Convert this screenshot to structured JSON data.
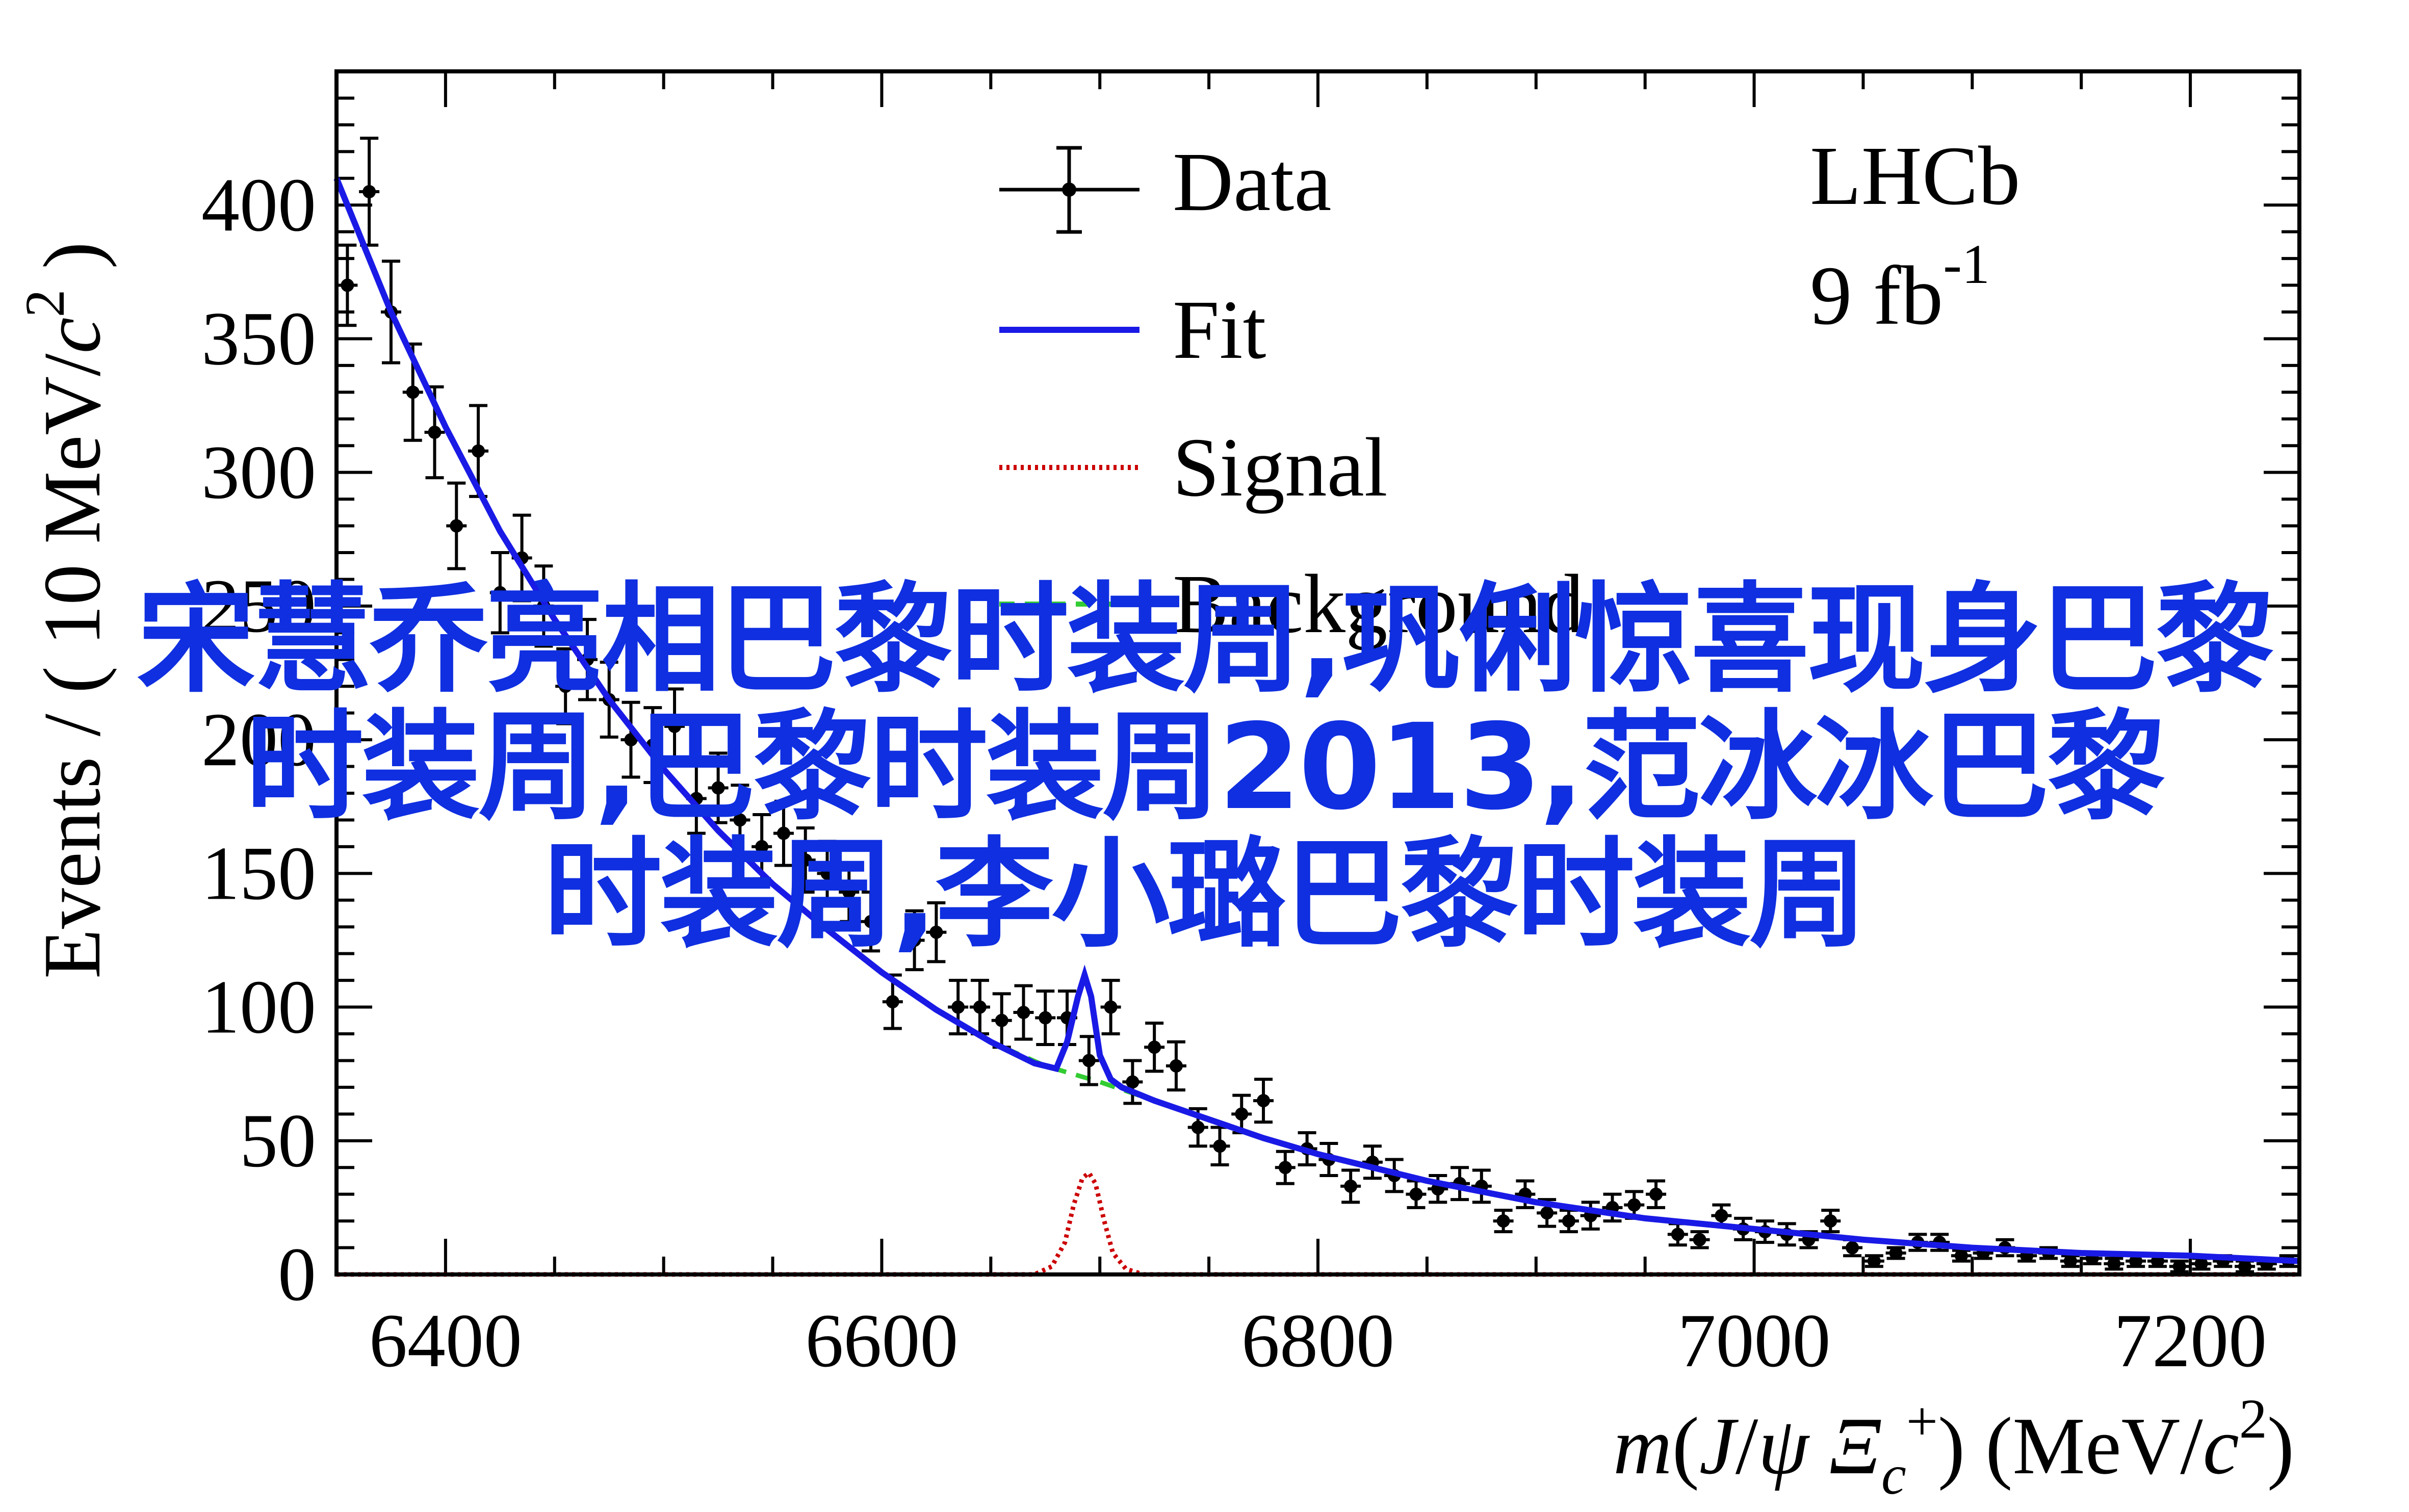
{
  "chart_data": {
    "type": "line",
    "experiment_label": "LHCb",
    "luminosity_label": "9 fb",
    "luminosity_exponent": "-1",
    "xlabel": "m(J/ψ Ξc+) (MeV/c2)",
    "ylabel": "Events / ( 10 MeV/c2 )",
    "xlim": [
      6350,
      7250
    ],
    "ylim": [
      0,
      450
    ],
    "x_ticks": [
      6400,
      6600,
      6800,
      7000,
      7200
    ],
    "y_ticks": [
      0,
      50,
      100,
      150,
      200,
      250,
      300,
      350,
      400
    ],
    "legend_position": "top-center",
    "legend": [
      {
        "label": "Data",
        "style": "points-with-errors",
        "color": "#000000"
      },
      {
        "label": "Fit",
        "style": "solid",
        "color": "#1a1ae6"
      },
      {
        "label": "Signal",
        "style": "dotted",
        "color": "#cc0000"
      },
      {
        "label": "Background",
        "style": "dashed",
        "color": "#33cc33"
      }
    ],
    "series": [
      {
        "name": "Data",
        "x": [
          6355,
          6365,
          6375,
          6385,
          6395,
          6405,
          6415,
          6425,
          6435,
          6445,
          6455,
          6465,
          6475,
          6485,
          6495,
          6505,
          6515,
          6525,
          6535,
          6545,
          6555,
          6565,
          6575,
          6585,
          6595,
          6605,
          6615,
          6625,
          6635,
          6645,
          6655,
          6665,
          6675,
          6685,
          6695,
          6705,
          6715,
          6725,
          6735,
          6745,
          6755,
          6765,
          6775,
          6785,
          6795,
          6805,
          6815,
          6825,
          6835,
          6845,
          6855,
          6865,
          6875,
          6885,
          6895,
          6905,
          6915,
          6925,
          6935,
          6945,
          6955,
          6965,
          6975,
          6985,
          6995,
          7005,
          7015,
          7025,
          7035,
          7045,
          7055,
          7065,
          7075,
          7085,
          7095,
          7105,
          7115,
          7125,
          7135,
          7145,
          7155,
          7165,
          7175,
          7185,
          7195,
          7205,
          7215,
          7225,
          7235,
          7245
        ],
        "y": [
          370,
          405,
          360,
          330,
          315,
          280,
          308,
          255,
          268,
          250,
          220,
          230,
          215,
          200,
          198,
          205,
          178,
          182,
          170,
          160,
          165,
          155,
          150,
          143,
          132,
          102,
          125,
          128,
          100,
          100,
          95,
          98,
          96,
          96,
          80,
          100,
          72,
          85,
          78,
          55,
          48,
          60,
          65,
          40,
          47,
          43,
          33,
          42,
          37,
          30,
          32,
          34,
          33,
          20,
          30,
          23,
          20,
          22,
          25,
          26,
          30,
          15,
          13,
          22,
          17,
          16,
          15,
          13,
          20,
          10,
          5,
          8,
          12,
          12,
          7,
          8,
          10,
          7,
          8,
          5,
          6,
          4,
          5,
          5,
          3,
          4,
          5,
          3,
          4,
          5
        ],
        "err": [
          15,
          20,
          19,
          18,
          17,
          16,
          17,
          15,
          16,
          15,
          14,
          15,
          14,
          14,
          14,
          14,
          13,
          13,
          13,
          12,
          12,
          12,
          12,
          11,
          11,
          10,
          11,
          11,
          10,
          10,
          10,
          10,
          10,
          10,
          9,
          10,
          8,
          9,
          9,
          7,
          7,
          7,
          8,
          6,
          6,
          6,
          6,
          6,
          6,
          5,
          5,
          6,
          6,
          4,
          5,
          5,
          4,
          5,
          5,
          5,
          5,
          4,
          3,
          4,
          4,
          4,
          4,
          3,
          4,
          3,
          2,
          2,
          3,
          3,
          2,
          2,
          3,
          2,
          2,
          2,
          2,
          2,
          2,
          2,
          2,
          2,
          2,
          2,
          2,
          2
        ]
      },
      {
        "name": "Fit",
        "x": [
          6350,
          6375,
          6400,
          6425,
          6450,
          6475,
          6500,
          6525,
          6550,
          6575,
          6600,
          6625,
          6650,
          6670,
          6680,
          6685,
          6690,
          6693,
          6696,
          6700,
          6705,
          6710,
          6725,
          6750,
          6775,
          6800,
          6850,
          6900,
          6950,
          7000,
          7050,
          7100,
          7150,
          7200,
          7250
        ],
        "y": [
          410,
          360,
          317,
          278,
          245,
          215,
          189,
          166,
          146,
          129,
          113,
          99,
          87,
          79,
          77,
          87,
          104,
          112,
          104,
          82,
          73,
          70,
          65,
          58,
          51,
          45,
          35,
          27,
          21,
          17,
          13,
          10,
          8,
          7,
          5
        ]
      },
      {
        "name": "Signal",
        "x": [
          6350,
          6670,
          6678,
          6684,
          6688,
          6692,
          6695,
          6698,
          6702,
          6706,
          6712,
          6720,
          7250
        ],
        "y": [
          0,
          0,
          3,
          12,
          26,
          36,
          38,
          34,
          20,
          8,
          2,
          0,
          0
        ]
      },
      {
        "name": "Background",
        "x": [
          6350,
          6375,
          6400,
          6425,
          6450,
          6475,
          6500,
          6525,
          6550,
          6575,
          6600,
          6625,
          6650,
          6675,
          6700,
          6725,
          6750,
          6775,
          6800,
          6850,
          6900,
          6950,
          7000,
          7050,
          7100,
          7150,
          7200,
          7250
        ],
        "y": [
          410,
          360,
          317,
          278,
          245,
          215,
          189,
          166,
          146,
          129,
          113,
          99,
          87,
          78,
          72,
          65,
          58,
          51,
          45,
          35,
          27,
          21,
          17,
          13,
          10,
          8,
          7,
          5
        ]
      }
    ]
  },
  "overlay_text": {
    "line1": "宋慧乔亮相巴黎时装周,巩俐惊喜现身巴黎",
    "line2": "时装周,巴黎时装周2013,范冰冰巴黎",
    "line3": "时装周,李小璐巴黎时装周"
  }
}
